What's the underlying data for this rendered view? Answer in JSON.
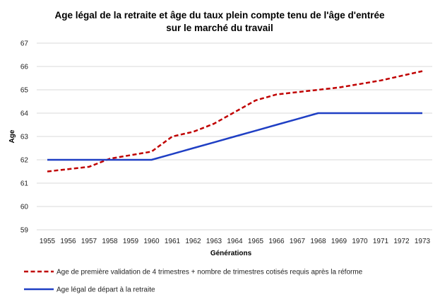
{
  "chart_data": {
    "type": "line",
    "title_line1": "Age légal de la retraite et âge du taux plein compte tenu de l'âge d'entrée",
    "title_line2": "sur le marché du travail",
    "xlabel": "Générations",
    "ylabel": "Age",
    "ylim": [
      59,
      67
    ],
    "yticks": [
      59,
      60,
      61,
      62,
      63,
      64,
      65,
      66,
      67
    ],
    "grid": "horizontal",
    "legend_position": "bottom",
    "categories": [
      "1955",
      "1956",
      "1957",
      "1958",
      "1959",
      "1960",
      "1961",
      "1962",
      "1963",
      "1964",
      "1965",
      "1966",
      "1967",
      "1968",
      "1969",
      "1970",
      "1971",
      "1972",
      "1973"
    ],
    "series": [
      {
        "name": "Age de première validation de 4 trimestres + nombre de trimestres cotisés requis après la réforme",
        "color": "#c00000",
        "style": "dashed",
        "values": [
          61.5,
          61.6,
          61.7,
          62.05,
          62.2,
          62.35,
          63.0,
          63.2,
          63.55,
          64.05,
          64.55,
          64.8,
          64.9,
          65.0,
          65.1,
          65.25,
          65.4,
          65.6,
          65.8
        ]
      },
      {
        "name": "Age légal de départ à la retraite",
        "color": "#1f3fc4",
        "style": "solid",
        "values": [
          62.0,
          62.0,
          62.0,
          62.0,
          62.0,
          62.0,
          62.25,
          62.5,
          62.75,
          63.0,
          63.25,
          63.5,
          63.75,
          64.0,
          64.0,
          64.0,
          64.0,
          64.0,
          64.0
        ]
      }
    ]
  }
}
